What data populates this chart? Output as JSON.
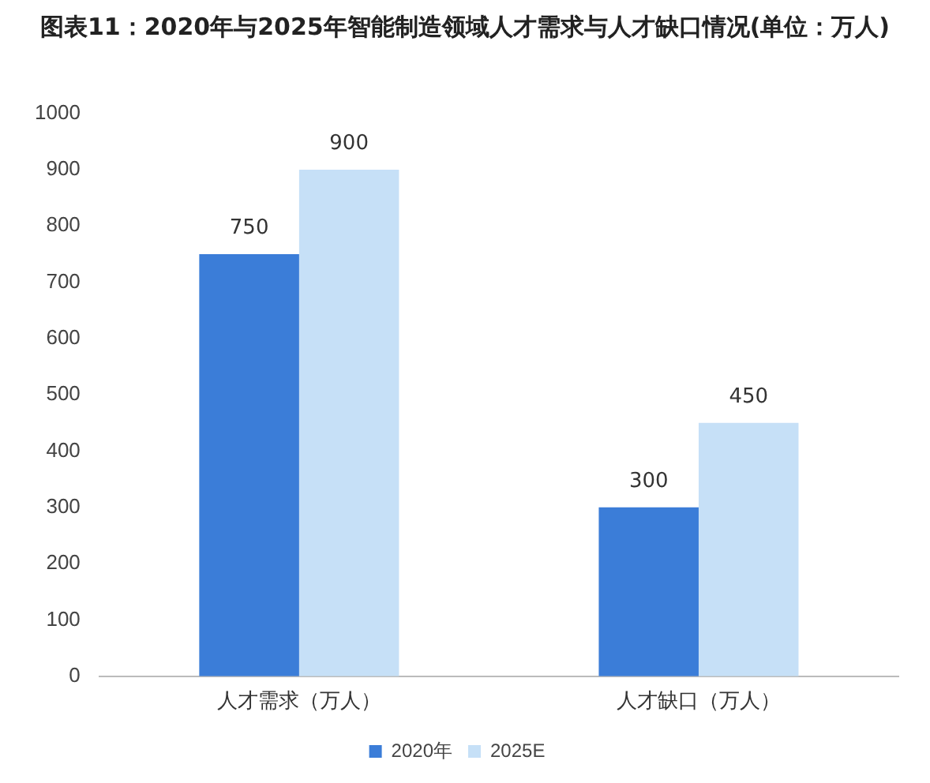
{
  "chart_data": {
    "type": "bar",
    "title": "图表11：2020年与2025年智能制造领域人才需求与人才缺口情况(单位：万人)",
    "categories": [
      "人才需求（万人）",
      "人才缺口（万人）"
    ],
    "series": [
      {
        "name": "2020年",
        "color": "#3b7dd8",
        "values": [
          750,
          300
        ]
      },
      {
        "name": "2025E",
        "color": "#c6e0f7",
        "values": [
          900,
          450
        ]
      }
    ],
    "ylim": [
      0,
      1000
    ],
    "yticks": [
      0,
      100,
      200,
      300,
      400,
      500,
      600,
      700,
      800,
      900,
      1000
    ],
    "grid": false,
    "legend": "bottom",
    "data_labels": true
  }
}
